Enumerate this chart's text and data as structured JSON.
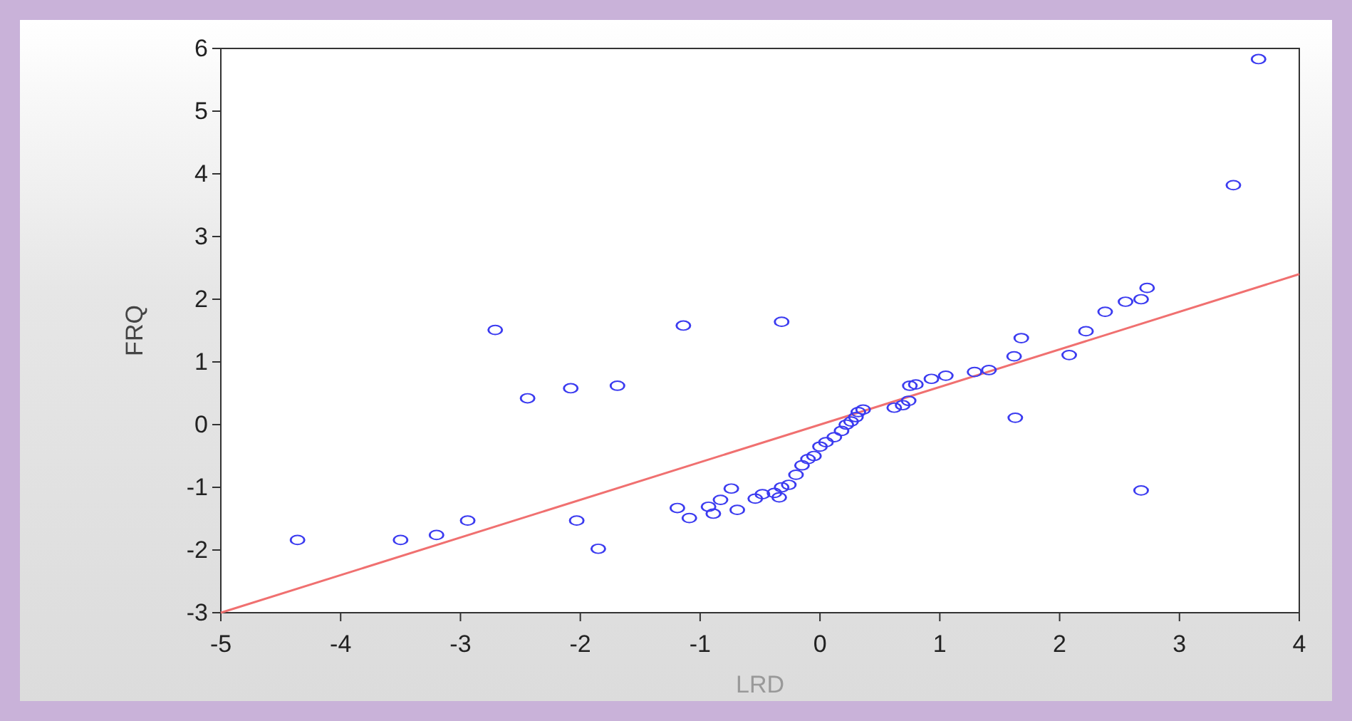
{
  "chart_data": {
    "type": "scatter",
    "xlabel": "LRD",
    "ylabel": "FRQ",
    "xlim": [
      -5,
      4
    ],
    "ylim": [
      -3,
      6
    ],
    "xticks": [
      -5,
      -4,
      -3,
      -2,
      -1,
      0,
      1,
      2,
      3,
      4
    ],
    "yticks": [
      -3,
      -2,
      -1,
      0,
      1,
      2,
      3,
      4,
      5,
      6
    ],
    "grid": false,
    "series": [
      {
        "color": "#3b3bf0",
        "marker": "circle",
        "x": [
          -4.36,
          -3.5,
          -3.2,
          -2.94,
          -2.71,
          -2.44,
          -2.08,
          -2.03,
          -1.85,
          -1.69,
          -1.14,
          -0.32,
          -1.19,
          -1.09,
          -0.93,
          -0.89,
          -0.83,
          -0.74,
          -0.69,
          -0.54,
          -0.48,
          -0.38,
          -0.34,
          -0.32,
          -0.26,
          -0.2,
          -0.15,
          -0.1,
          -0.05,
          0.0,
          0.05,
          0.12,
          0.18,
          0.22,
          0.26,
          0.3,
          0.32,
          0.36,
          0.62,
          0.69,
          0.74,
          0.75,
          0.8,
          0.93,
          1.05,
          1.29,
          1.41,
          1.62,
          1.68,
          1.63,
          2.08,
          2.22,
          2.38,
          2.55,
          2.68,
          2.73,
          2.68,
          3.45,
          3.66
        ],
        "values": [
          -1.84,
          -1.84,
          -1.76,
          -1.53,
          1.51,
          0.42,
          0.58,
          -1.53,
          -1.98,
          0.62,
          1.58,
          1.64,
          -1.33,
          -1.49,
          -1.31,
          -1.42,
          -1.2,
          -1.02,
          -1.36,
          -1.18,
          -1.11,
          -1.09,
          -1.16,
          -1.0,
          -0.96,
          -0.8,
          -0.65,
          -0.55,
          -0.5,
          -0.35,
          -0.28,
          -0.2,
          -0.1,
          0.0,
          0.05,
          0.12,
          0.2,
          0.24,
          0.27,
          0.31,
          0.38,
          0.62,
          0.64,
          0.73,
          0.78,
          0.84,
          0.87,
          1.09,
          1.38,
          0.11,
          1.11,
          1.49,
          1.8,
          1.96,
          2.0,
          2.18,
          -1.05,
          3.82,
          5.83
        ]
      },
      {
        "type": "line",
        "color": "#f07070",
        "marker": "none",
        "x": [
          -5,
          4
        ],
        "values": [
          -3,
          2.4
        ]
      }
    ]
  }
}
